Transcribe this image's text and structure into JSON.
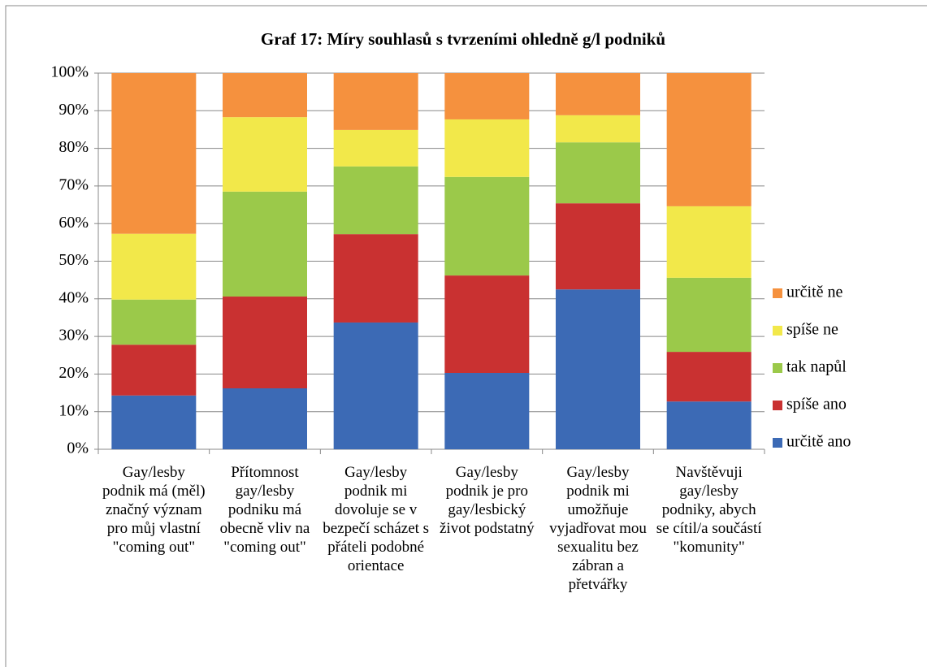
{
  "chart_data": {
    "type": "stacked_bar_100",
    "title": "Graf 17: Míry souhlasů s tvrzeními ohledně g/l podniků",
    "categories": [
      "Gay/lesby podnik má (měl) značný význam pro můj vlastní \"coming out\"",
      "Přítomnost gay/lesby podniku má obecně vliv na \"coming out\"",
      "Gay/lesby podnik mi dovoluje se v bezpečí scházet s přáteli podobné orientace",
      "Gay/lesby podnik je pro gay/lesbický život podstatný",
      "Gay/lesby podnik mi umožňuje vyjadřovat mou sexualitu bez zábran a přetvářky",
      "Navštěvuji gay/lesby podniky, abych se cítil/a součástí \"komunity\""
    ],
    "series": [
      {
        "name": "určitě ano",
        "color": "#3c6ab5",
        "values": [
          14.3,
          16.2,
          33.7,
          20.3,
          42.5,
          12.7
        ]
      },
      {
        "name": "spíše ano",
        "color": "#c93131",
        "values": [
          13.5,
          24.4,
          23.5,
          25.9,
          22.9,
          13.2
        ]
      },
      {
        "name": "tak napůl",
        "color": "#9bc94a",
        "values": [
          12.0,
          27.9,
          18.0,
          26.2,
          16.2,
          19.7
        ]
      },
      {
        "name": "spíše ne",
        "color": "#f2e84a",
        "values": [
          17.5,
          19.8,
          9.7,
          15.3,
          7.2,
          19.0
        ]
      },
      {
        "name": "určitě ne",
        "color": "#f5913e",
        "values": [
          42.7,
          11.7,
          15.1,
          12.3,
          11.2,
          35.4
        ]
      }
    ],
    "ylim": [
      0,
      100
    ],
    "yticks": [
      {
        "value": 0,
        "label": "0%"
      },
      {
        "value": 10,
        "label": "10%"
      },
      {
        "value": 20,
        "label": "20%"
      },
      {
        "value": 30,
        "label": "30%"
      },
      {
        "value": 40,
        "label": "40%"
      },
      {
        "value": 50,
        "label": "50%"
      },
      {
        "value": 60,
        "label": "60%"
      },
      {
        "value": 70,
        "label": "70%"
      },
      {
        "value": 80,
        "label": "80%"
      },
      {
        "value": 90,
        "label": "90%"
      },
      {
        "value": 100,
        "label": "100%"
      }
    ],
    "grid": true,
    "legend": "right"
  }
}
